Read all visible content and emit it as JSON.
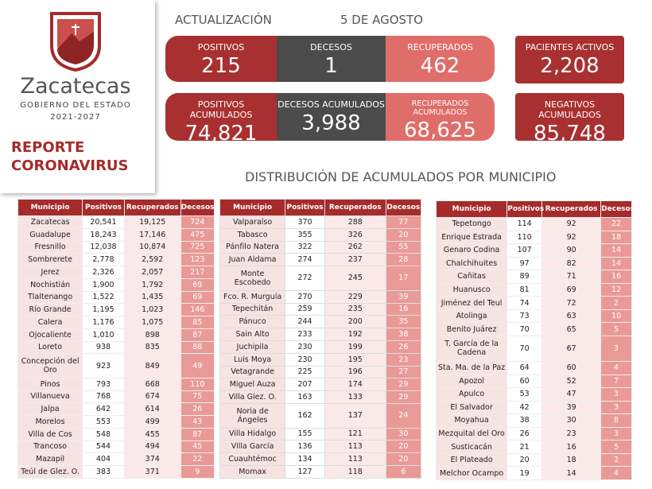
{
  "header": {
    "state": "Zacatecas",
    "government": "GOBIERNO DEL ESTADO",
    "period": "2021-2027",
    "report_line1": "REPORTE",
    "report_line2": "CORONAVIRUS"
  },
  "update": {
    "label": "ACTUALIZACIÓN",
    "date": "5 DE AGOSTO"
  },
  "cards": [
    {
      "label": "POSITIVOS",
      "value": "215"
    },
    {
      "label": "DECESOS",
      "value": "1"
    },
    {
      "label": "RECUPERADOS",
      "value": "462"
    },
    {
      "label": "PACIENTES ACTIVOS",
      "value": "2,208"
    },
    {
      "label": "POSITIVOS ACUMULADOS",
      "value": "74,821"
    },
    {
      "label": "DECESOS ACUMULADOS",
      "value": "3,988"
    },
    {
      "label": "RECUPERADOS ACUMULADOS",
      "value": "68,625"
    },
    {
      "label": "NEGATIVOS ACUMULADOS",
      "value": "85,748"
    }
  ],
  "section_title": "DISTRIBUCIÓN DE ACUMULADOS POR MUNICIPIO",
  "tables": [
    {
      "columns": [
        "Municipio",
        "Positivos",
        "Recuperados",
        "Decesos"
      ],
      "rows": [
        [
          "Zacatecas",
          "20,541",
          "19,125",
          "724"
        ],
        [
          "Guadalupe",
          "18,243",
          "17,146",
          "475"
        ],
        [
          "Fresnillo",
          "12,038",
          "10,874",
          "725"
        ],
        [
          "Sombrerete",
          "2,778",
          "2,592",
          "123"
        ],
        [
          "Jerez",
          "2,326",
          "2,057",
          "217"
        ],
        [
          "Nochistián",
          "1,900",
          "1,792",
          "69"
        ],
        [
          "Tlaltenango",
          "1,522",
          "1,435",
          "69"
        ],
        [
          "Río Grande",
          "1,195",
          "1,023",
          "146"
        ],
        [
          "Calera",
          "1,176",
          "1,075",
          "85"
        ],
        [
          "Ojocaliente",
          "1,010",
          "898",
          "87"
        ],
        [
          "Loreto",
          "938",
          "835",
          "88"
        ],
        [
          "Concepción del Oro",
          "923",
          "849",
          "49"
        ],
        [
          "Pinos",
          "793",
          "668",
          "110"
        ],
        [
          "Villanueva",
          "768",
          "674",
          "75"
        ],
        [
          "Jalpa",
          "642",
          "614",
          "26"
        ],
        [
          "Morelos",
          "553",
          "499",
          "43"
        ],
        [
          "Villa de Cos",
          "548",
          "455",
          "87"
        ],
        [
          "Trancoso",
          "544",
          "494",
          "45"
        ],
        [
          "Mazapil",
          "404",
          "374",
          "22"
        ],
        [
          "Teúl de Glez. O.",
          "383",
          "371",
          "9"
        ]
      ]
    },
    {
      "columns": [
        "Municipio",
        "Positivos",
        "Recuperados",
        "Decesos"
      ],
      "rows": [
        [
          "Valparaíso",
          "370",
          "288",
          "77"
        ],
        [
          "Tabasco",
          "355",
          "326",
          "20"
        ],
        [
          "Pánfilo Natera",
          "322",
          "262",
          "55"
        ],
        [
          "Juan Aldama",
          "274",
          "237",
          "28"
        ],
        [
          "Monte Escobedo",
          "272",
          "245",
          "17"
        ],
        [
          "Fco. R. Murguía",
          "270",
          "229",
          "39"
        ],
        [
          "Tepechitán",
          "259",
          "235",
          "16"
        ],
        [
          "Pánuco",
          "244",
          "200",
          "35"
        ],
        [
          "Sain Alto",
          "233",
          "192",
          "38"
        ],
        [
          "Juchipila",
          "230",
          "199",
          "26"
        ],
        [
          "Luis Moya",
          "230",
          "195",
          "23"
        ],
        [
          "Vetagrande",
          "225",
          "196",
          "27"
        ],
        [
          "Miguel Auza",
          "207",
          "174",
          "29"
        ],
        [
          "Villa Glez. O.",
          "163",
          "133",
          "29"
        ],
        [
          "Noria de Ángeles",
          "162",
          "137",
          "24"
        ],
        [
          "Villa Hidalgo",
          "155",
          "121",
          "30"
        ],
        [
          "Villa García",
          "136",
          "113",
          "20"
        ],
        [
          "Cuauhtémoc",
          "134",
          "113",
          "20"
        ],
        [
          "Momax",
          "127",
          "118",
          "6"
        ]
      ]
    },
    {
      "columns": [
        "Municipio",
        "Positivos",
        "Recuperados",
        "Decesos"
      ],
      "rows": [
        [
          "Tepetongo",
          "114",
          "92",
          "22"
        ],
        [
          "Enrique Estrada",
          "110",
          "92",
          "18"
        ],
        [
          "Genaro Codina",
          "107",
          "90",
          "14"
        ],
        [
          "Chalchihuites",
          "97",
          "82",
          "14"
        ],
        [
          "Cañitas",
          "89",
          "71",
          "16"
        ],
        [
          "Huanusco",
          "81",
          "69",
          "12"
        ],
        [
          "Jiménez del Teul",
          "74",
          "72",
          "2"
        ],
        [
          "Atolinga",
          "73",
          "63",
          "10"
        ],
        [
          "Benito Juárez",
          "70",
          "65",
          "5"
        ],
        [
          "T. García de la Cadena",
          "70",
          "67",
          "3"
        ],
        [
          "Sta. Ma. de la Paz",
          "64",
          "60",
          "4"
        ],
        [
          "Apozol",
          "60",
          "52",
          "7"
        ],
        [
          "Apulco",
          "53",
          "47",
          "3"
        ],
        [
          "El Salvador",
          "42",
          "39",
          "3"
        ],
        [
          "Moyahua",
          "38",
          "30",
          "8"
        ],
        [
          "Mezquital del Oro",
          "26",
          "23",
          "3"
        ],
        [
          "Susticacán",
          "21",
          "16",
          "5"
        ],
        [
          "El Plateado",
          "20",
          "18",
          "2"
        ],
        [
          "Melchor Ocampo",
          "19",
          "14",
          "4"
        ]
      ]
    }
  ]
}
